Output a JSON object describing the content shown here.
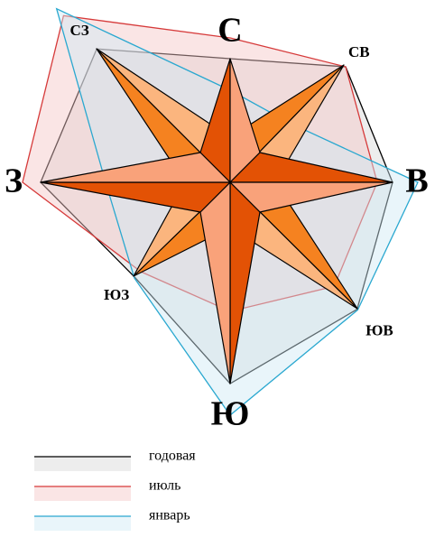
{
  "chart_data": {
    "type": "radar",
    "categories": [
      "С",
      "СВ",
      "В",
      "ЮВ",
      "Ю",
      "ЮЗ",
      "З",
      "СЗ"
    ],
    "rlim": [
      0,
      280
    ],
    "series": [
      {
        "name": "годовая",
        "color": "#000000",
        "fill": "#d8d8d8",
        "values": [
          137,
          181,
          180,
          199,
          223,
          149,
          210,
          209
        ]
      },
      {
        "name": "июль",
        "color": "#d63a3a",
        "fill": "#f4c6c6",
        "values": [
          160,
          181,
          163,
          163,
          143,
          140,
          230,
          261
        ]
      },
      {
        "name": "январь",
        "color": "#2aa8d0",
        "fill": "#cfe9f3",
        "values": [
          102,
          93,
          208,
          200,
          258,
          150,
          138,
          272
        ]
      }
    ]
  }
}
